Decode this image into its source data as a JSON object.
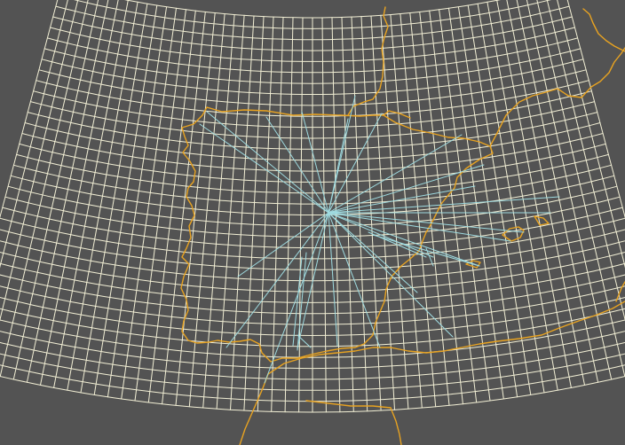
{
  "map": {
    "background": "#535353",
    "projection": "conic",
    "grid": {
      "color": "#f2efd5",
      "columns": 52,
      "rows": 36
    },
    "coastline_color": "#e8a321",
    "route_color": "#9fdbe0",
    "hub": "Madrid"
  }
}
